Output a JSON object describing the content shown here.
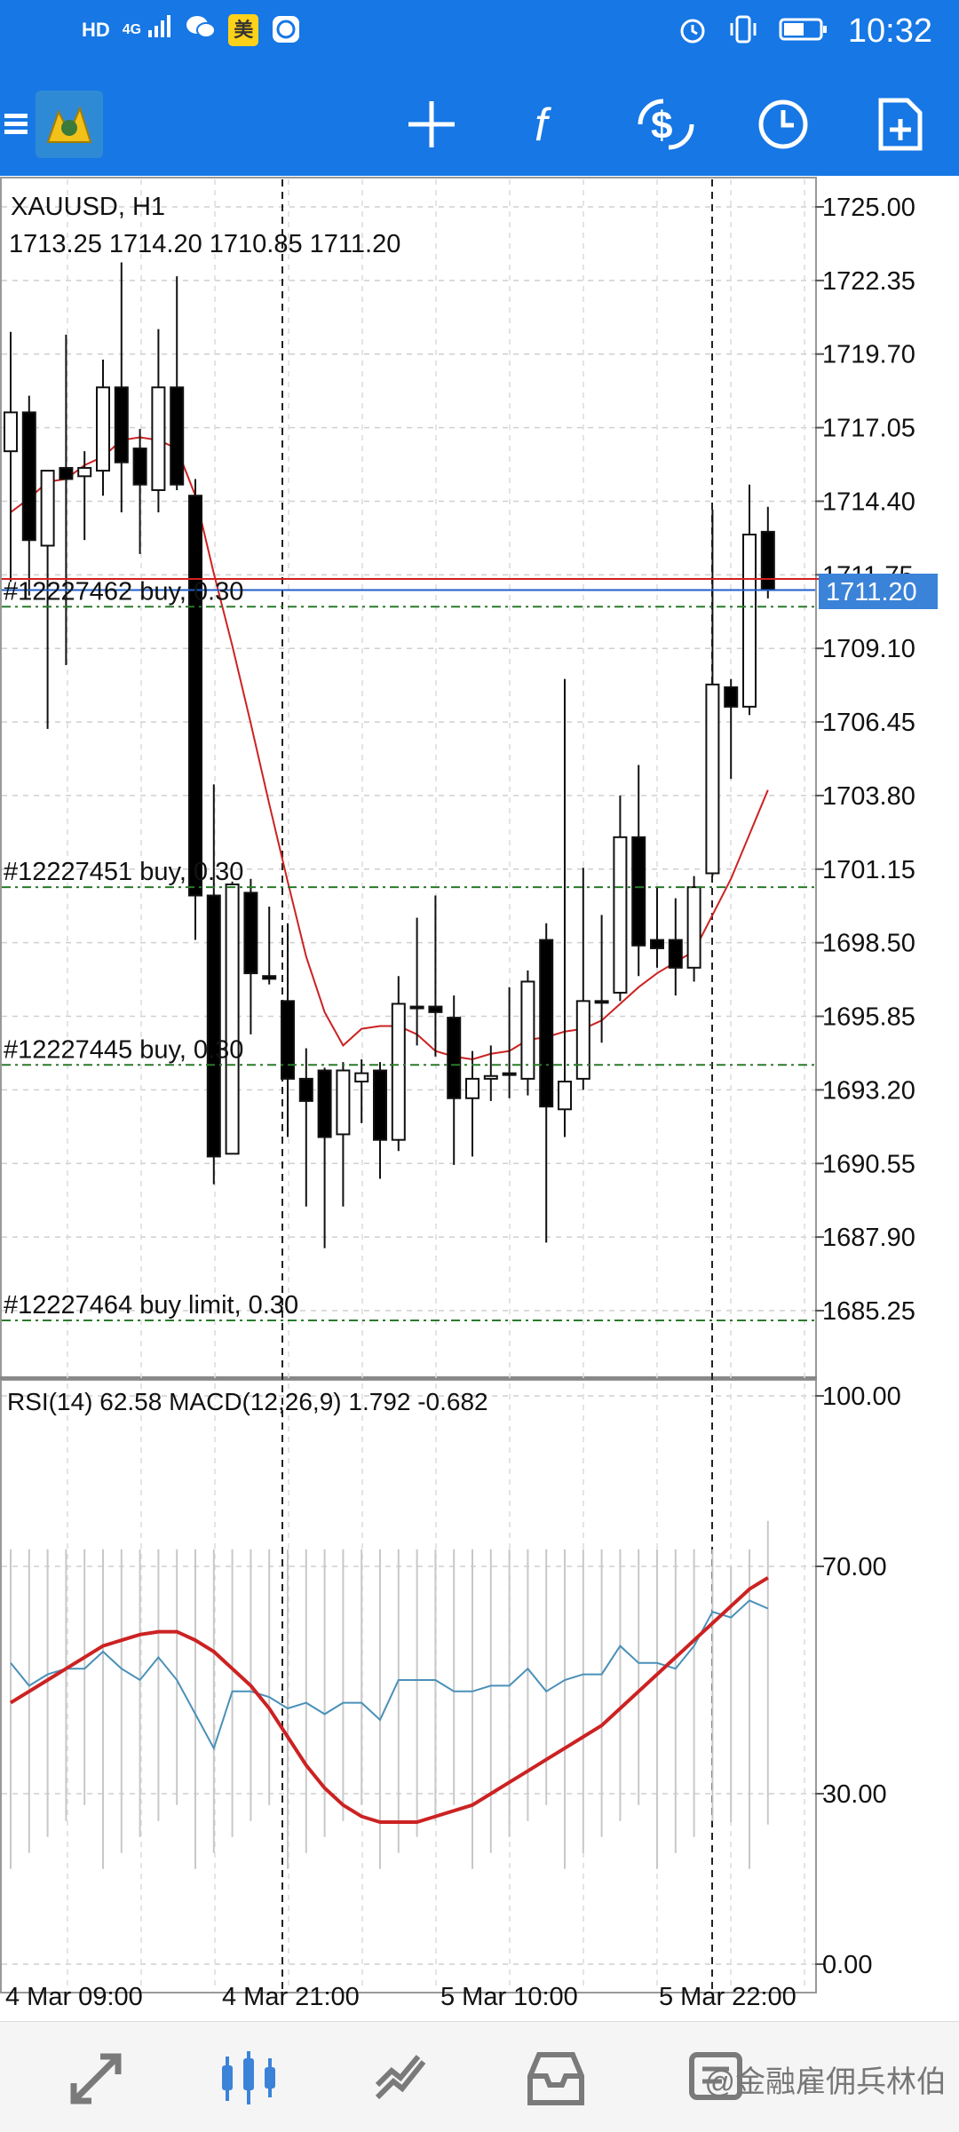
{
  "status_bar": {
    "time": "10:32",
    "left_icons": [
      "hd-icon",
      "signal-4g-icon",
      "wechat-icon",
      "meituan-icon",
      "app-icon"
    ],
    "right_icons": [
      "alarm-icon",
      "vibrate-icon",
      "battery-icon"
    ],
    "hd_label": "HD",
    "signal_label": "4G",
    "badge_label": "美"
  },
  "toolbar": {
    "items": [
      "menu-icon",
      "metatrader-logo",
      "crosshair-icon",
      "function-icon",
      "symbol-icon",
      "period-icon",
      "new-order-icon"
    ]
  },
  "chart_header": {
    "symbol": "XAUUSD, H1",
    "ohlc": "1713.25 1714.20 1710.85 1711.20"
  },
  "indicator_label": "RSI(14) 62.58 MACD(12,26,9) 1.792 -0.682",
  "price_badge": "1711.20",
  "orders": [
    {
      "label": "#12227462 buy, 0.30",
      "price": 1710.6
    },
    {
      "label": "#12227451 buy, 0.30",
      "price": 1700.5
    },
    {
      "label": "#12227445 buy, 0.30",
      "price": 1694.1
    },
    {
      "label": "#12227464 buy limit, 0.30",
      "price": 1684.9
    }
  ],
  "bottom_nav": {
    "items": [
      "quotes-icon",
      "chart-icon",
      "trade-icon",
      "history-icon",
      "messages-icon"
    ],
    "watermark": "@金融雇佣兵林伯"
  },
  "colors": {
    "accent": "#1677e5",
    "ma_line": "#cc2222",
    "rsi_line": "#4a90b8",
    "macd_signal": "#cc2222",
    "bid_line": "#1e5fc8",
    "ask_line": "#d42020"
  },
  "chart_data": [
    {
      "type": "candlestick",
      "symbol": "XAUUSD",
      "timeframe": "H1",
      "ylim": [
        1683.5,
        1726.5
      ],
      "y_ticks": [
        "1725.00",
        "1722.35",
        "1719.70",
        "1717.05",
        "1714.40",
        "1711.75",
        "1709.10",
        "1706.45",
        "1703.80",
        "1701.15",
        "1698.50",
        "1695.85",
        "1693.20",
        "1690.55",
        "1687.90",
        "1685.25"
      ],
      "x_ticks": [
        "4 Mar 09:00",
        "4 Mar 21:00",
        "5 Mar 10:00",
        "5 Mar 22:00"
      ],
      "current_price": 1711.2,
      "ask_price": 1711.6,
      "candles": [
        {
          "o": 1716.2,
          "h": 1720.5,
          "l": 1711.5,
          "c": 1717.6
        },
        {
          "o": 1717.6,
          "h": 1718.2,
          "l": 1711.0,
          "c": 1713.0
        },
        {
          "o": 1712.8,
          "h": 1715.5,
          "l": 1706.2,
          "c": 1715.5
        },
        {
          "o": 1715.6,
          "h": 1720.4,
          "l": 1708.5,
          "c": 1715.2
        },
        {
          "o": 1715.3,
          "h": 1716.2,
          "l": 1713.0,
          "c": 1715.6
        },
        {
          "o": 1715.5,
          "h": 1719.5,
          "l": 1714.6,
          "c": 1718.5
        },
        {
          "o": 1718.5,
          "h": 1723.0,
          "l": 1714.0,
          "c": 1715.8
        },
        {
          "o": 1716.3,
          "h": 1717.0,
          "l": 1712.5,
          "c": 1715.0
        },
        {
          "o": 1714.8,
          "h": 1720.6,
          "l": 1714.0,
          "c": 1718.5
        },
        {
          "o": 1718.5,
          "h": 1722.5,
          "l": 1714.8,
          "c": 1715.0
        },
        {
          "o": 1714.6,
          "h": 1715.2,
          "l": 1698.6,
          "c": 1700.2
        },
        {
          "o": 1700.2,
          "h": 1704.2,
          "l": 1689.8,
          "c": 1690.8
        },
        {
          "o": 1690.9,
          "h": 1700.7,
          "l": 1690.9,
          "c": 1700.6
        },
        {
          "o": 1700.3,
          "h": 1700.8,
          "l": 1695.2,
          "c": 1697.4
        },
        {
          "o": 1697.3,
          "h": 1699.8,
          "l": 1697.0,
          "c": 1697.2
        },
        {
          "o": 1696.4,
          "h": 1699.2,
          "l": 1691.5,
          "c": 1693.6
        },
        {
          "o": 1693.6,
          "h": 1694.7,
          "l": 1689.0,
          "c": 1692.8
        },
        {
          "o": 1693.9,
          "h": 1694.0,
          "l": 1687.5,
          "c": 1691.5
        },
        {
          "o": 1691.6,
          "h": 1694.2,
          "l": 1689.0,
          "c": 1693.9
        },
        {
          "o": 1693.5,
          "h": 1694.3,
          "l": 1692.0,
          "c": 1693.8
        },
        {
          "o": 1693.9,
          "h": 1694.2,
          "l": 1690.0,
          "c": 1691.4
        },
        {
          "o": 1691.4,
          "h": 1697.3,
          "l": 1691.0,
          "c": 1696.3
        },
        {
          "o": 1696.2,
          "h": 1699.4,
          "l": 1694.8,
          "c": 1696.2
        },
        {
          "o": 1696.2,
          "h": 1700.2,
          "l": 1694.4,
          "c": 1696.0
        },
        {
          "o": 1695.8,
          "h": 1696.6,
          "l": 1690.5,
          "c": 1692.9
        },
        {
          "o": 1692.9,
          "h": 1694.6,
          "l": 1690.8,
          "c": 1693.6
        },
        {
          "o": 1693.6,
          "h": 1694.8,
          "l": 1692.8,
          "c": 1693.7
        },
        {
          "o": 1693.8,
          "h": 1696.9,
          "l": 1692.9,
          "c": 1693.8
        },
        {
          "o": 1693.6,
          "h": 1697.5,
          "l": 1693.0,
          "c": 1697.1
        },
        {
          "o": 1698.6,
          "h": 1699.2,
          "l": 1687.7,
          "c": 1692.6
        },
        {
          "o": 1692.5,
          "h": 1708.0,
          "l": 1691.5,
          "c": 1693.5
        },
        {
          "o": 1693.6,
          "h": 1701.2,
          "l": 1693.2,
          "c": 1696.4
        },
        {
          "o": 1696.4,
          "h": 1699.5,
          "l": 1694.9,
          "c": 1696.4
        },
        {
          "o": 1696.7,
          "h": 1703.8,
          "l": 1696.4,
          "c": 1702.3
        },
        {
          "o": 1702.3,
          "h": 1704.9,
          "l": 1697.3,
          "c": 1698.4
        },
        {
          "o": 1698.6,
          "h": 1700.5,
          "l": 1697.6,
          "c": 1698.3
        },
        {
          "o": 1698.6,
          "h": 1700.1,
          "l": 1696.6,
          "c": 1697.6
        },
        {
          "o": 1697.6,
          "h": 1700.9,
          "l": 1697.1,
          "c": 1700.5
        },
        {
          "o": 1701.0,
          "h": 1714.1,
          "l": 1700.9,
          "c": 1707.8
        },
        {
          "o": 1707.7,
          "h": 1708.0,
          "l": 1704.4,
          "c": 1707.0
        },
        {
          "o": 1707.0,
          "h": 1715.0,
          "l": 1706.7,
          "c": 1713.2
        },
        {
          "o": 1713.3,
          "h": 1714.2,
          "l": 1710.9,
          "c": 1711.2
        }
      ],
      "ma_line": [
        1714.0,
        1714.5,
        1715.1,
        1715.2,
        1715.7,
        1716.0,
        1716.6,
        1716.7,
        1716.6,
        1716.3,
        1714.6,
        1711.8,
        1709.2,
        1706.4,
        1703.5,
        1700.7,
        1698.0,
        1696.0,
        1694.8,
        1695.4,
        1695.5,
        1695.5,
        1695.2,
        1694.6,
        1694.4,
        1694.3,
        1694.5,
        1694.6,
        1695.0,
        1695.1,
        1695.3,
        1695.4,
        1695.7,
        1696.3,
        1696.9,
        1697.4,
        1697.8,
        1698.2,
        1699.5,
        1700.8,
        1702.4,
        1704.0
      ]
    },
    {
      "type": "line",
      "name": "RSI(14) / MACD(12,26,9)",
      "ylim": [
        0,
        100
      ],
      "y_ticks": [
        "100.00",
        "70.00",
        "30.00",
        "0.00"
      ],
      "series": [
        {
          "name": "RSI(14)",
          "values": [
            53,
            49,
            51,
            52,
            52,
            55,
            52,
            50,
            54,
            50,
            44,
            38,
            48,
            48,
            47,
            45,
            46,
            44,
            46,
            46,
            43,
            50,
            50,
            50,
            48,
            48,
            49,
            49,
            52,
            48,
            50,
            51,
            51,
            56,
            53,
            53,
            52,
            56,
            62,
            61,
            64,
            62.58
          ]
        },
        {
          "name": "MACD signal",
          "values": [
            46,
            48,
            50,
            52,
            54,
            56,
            57,
            58,
            58.5,
            58.5,
            57,
            55,
            52,
            49,
            45,
            40,
            35,
            31,
            28,
            26,
            25,
            25,
            25,
            26,
            27,
            28,
            30,
            32,
            34,
            36,
            38,
            40,
            42,
            45,
            48,
            51,
            54,
            57,
            60,
            63,
            66,
            68
          ]
        }
      ],
      "histogram": [
        73,
        73,
        73,
        73,
        73,
        73,
        73,
        73,
        73,
        73,
        73,
        73,
        73,
        73,
        73,
        73,
        73,
        73,
        73,
        73,
        73,
        73,
        73,
        73,
        73,
        73,
        73,
        73,
        73,
        73,
        73,
        73,
        73,
        73,
        73,
        73,
        73,
        73,
        73,
        70,
        73,
        78
      ]
    }
  ]
}
